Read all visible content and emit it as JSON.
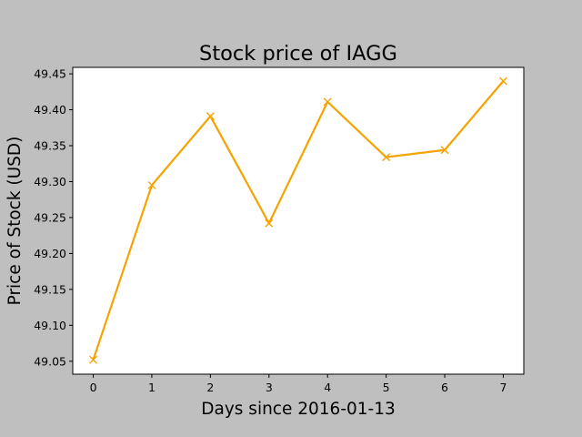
{
  "chart_data": {
    "type": "line",
    "title": "Stock price of IAGG",
    "xlabel": "Days since 2016-01-13",
    "ylabel": "Price of Stock (USD)",
    "x": [
      0,
      1,
      2,
      3,
      4,
      5,
      6,
      7
    ],
    "series": [
      {
        "values": [
          49.052,
          49.295,
          49.391,
          49.242,
          49.411,
          49.334,
          49.344,
          49.44
        ]
      }
    ],
    "xlim": [
      -0.35,
      7.35
    ],
    "ylim": [
      49.032,
      49.459
    ],
    "xticks": [
      0,
      1,
      2,
      3,
      4,
      5,
      6,
      7
    ],
    "xtick_labels": [
      "0",
      "1",
      "2",
      "3",
      "4",
      "5",
      "6",
      "7"
    ],
    "yticks": [
      49.05,
      49.1,
      49.15,
      49.2,
      49.25,
      49.3,
      49.35,
      49.4,
      49.45
    ],
    "ytick_labels": [
      "49.05",
      "49.10",
      "49.15",
      "49.20",
      "49.25",
      "49.30",
      "49.35",
      "49.40",
      "49.45"
    ],
    "marker": "x",
    "grid": false,
    "legend": "none",
    "colors": {
      "line": "#f5a300",
      "figure_background": "#bfbfbf",
      "plot_background": "#ffffff",
      "axes": "#000000"
    }
  }
}
